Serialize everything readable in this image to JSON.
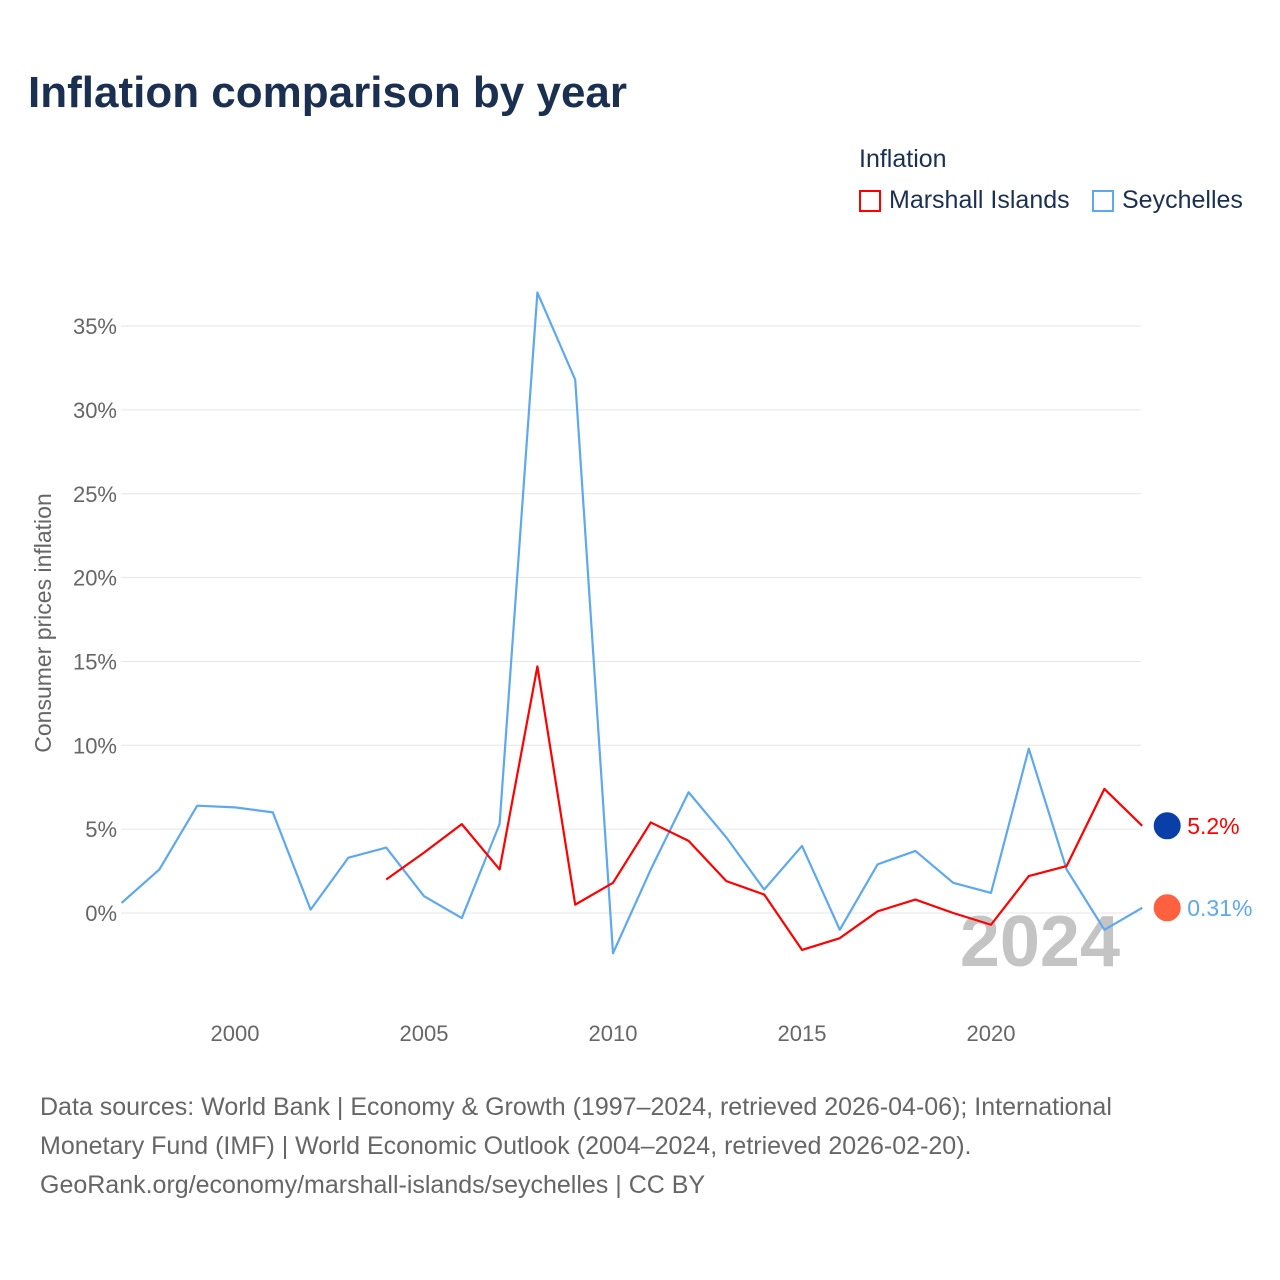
{
  "title": "Inflation comparison by year",
  "legend": {
    "title": "Inflation",
    "items": [
      {
        "label": "Marshall Islands",
        "color": "#ff0000"
      },
      {
        "label": "Seychelles",
        "color": "#5ea8ee"
      }
    ]
  },
  "chart_data": {
    "type": "line",
    "ylabel": "Consumer prices inflation",
    "xlabel": "",
    "ylim": [
      -4.5,
      37.5
    ],
    "xlim": [
      1997,
      2024
    ],
    "yticks": [
      0,
      5,
      10,
      15,
      20,
      25,
      30,
      35
    ],
    "ytick_labels": [
      "0%",
      "5%",
      "10%",
      "15%",
      "20%",
      "25%",
      "30%",
      "35%"
    ],
    "xticks": [
      2000,
      2005,
      2010,
      2015,
      2020
    ],
    "xtick_labels": [
      "2000",
      "2005",
      "2010",
      "2015",
      "2020"
    ],
    "grid": true,
    "year_watermark": "2024",
    "series": [
      {
        "name": "Marshall Islands",
        "color": "#ff0000",
        "end_label": "5.2%",
        "x": [
          2004,
          2005,
          2006,
          2007,
          2008,
          2009,
          2010,
          2011,
          2012,
          2013,
          2014,
          2015,
          2016,
          2017,
          2018,
          2019,
          2020,
          2021,
          2022,
          2023,
          2024
        ],
        "values": [
          2.0,
          3.6,
          5.3,
          2.6,
          14.7,
          0.5,
          1.8,
          5.4,
          4.3,
          1.9,
          1.1,
          -2.2,
          -1.5,
          0.1,
          0.8,
          0.0,
          -0.7,
          2.2,
          2.8,
          7.4,
          5.2
        ]
      },
      {
        "name": "Seychelles",
        "color": "#5ea8ee",
        "end_label": "0.31%",
        "x": [
          1997,
          1998,
          1999,
          2000,
          2001,
          2002,
          2003,
          2004,
          2005,
          2006,
          2007,
          2008,
          2009,
          2010,
          2011,
          2012,
          2013,
          2014,
          2015,
          2016,
          2017,
          2018,
          2019,
          2020,
          2021,
          2022,
          2023,
          2024
        ],
        "values": [
          0.6,
          2.6,
          6.4,
          6.3,
          6.0,
          0.2,
          3.3,
          3.9,
          1.0,
          -0.3,
          5.3,
          37.0,
          31.8,
          -2.4,
          2.6,
          7.2,
          4.5,
          1.4,
          4.0,
          -1.0,
          2.9,
          3.7,
          1.8,
          1.2,
          9.8,
          2.6,
          -1.0,
          0.31
        ]
      }
    ]
  },
  "footer": {
    "line1": "Data sources: World Bank | Economy & Growth (1997–2024, retrieved 2026-04-06); International",
    "line2": "Monetary Fund (IMF) | World Economic Outlook (2004–2024, retrieved 2026-02-20).",
    "line3": "GeoRank.org/economy/marshall-islands/seychelles | CC BY"
  }
}
